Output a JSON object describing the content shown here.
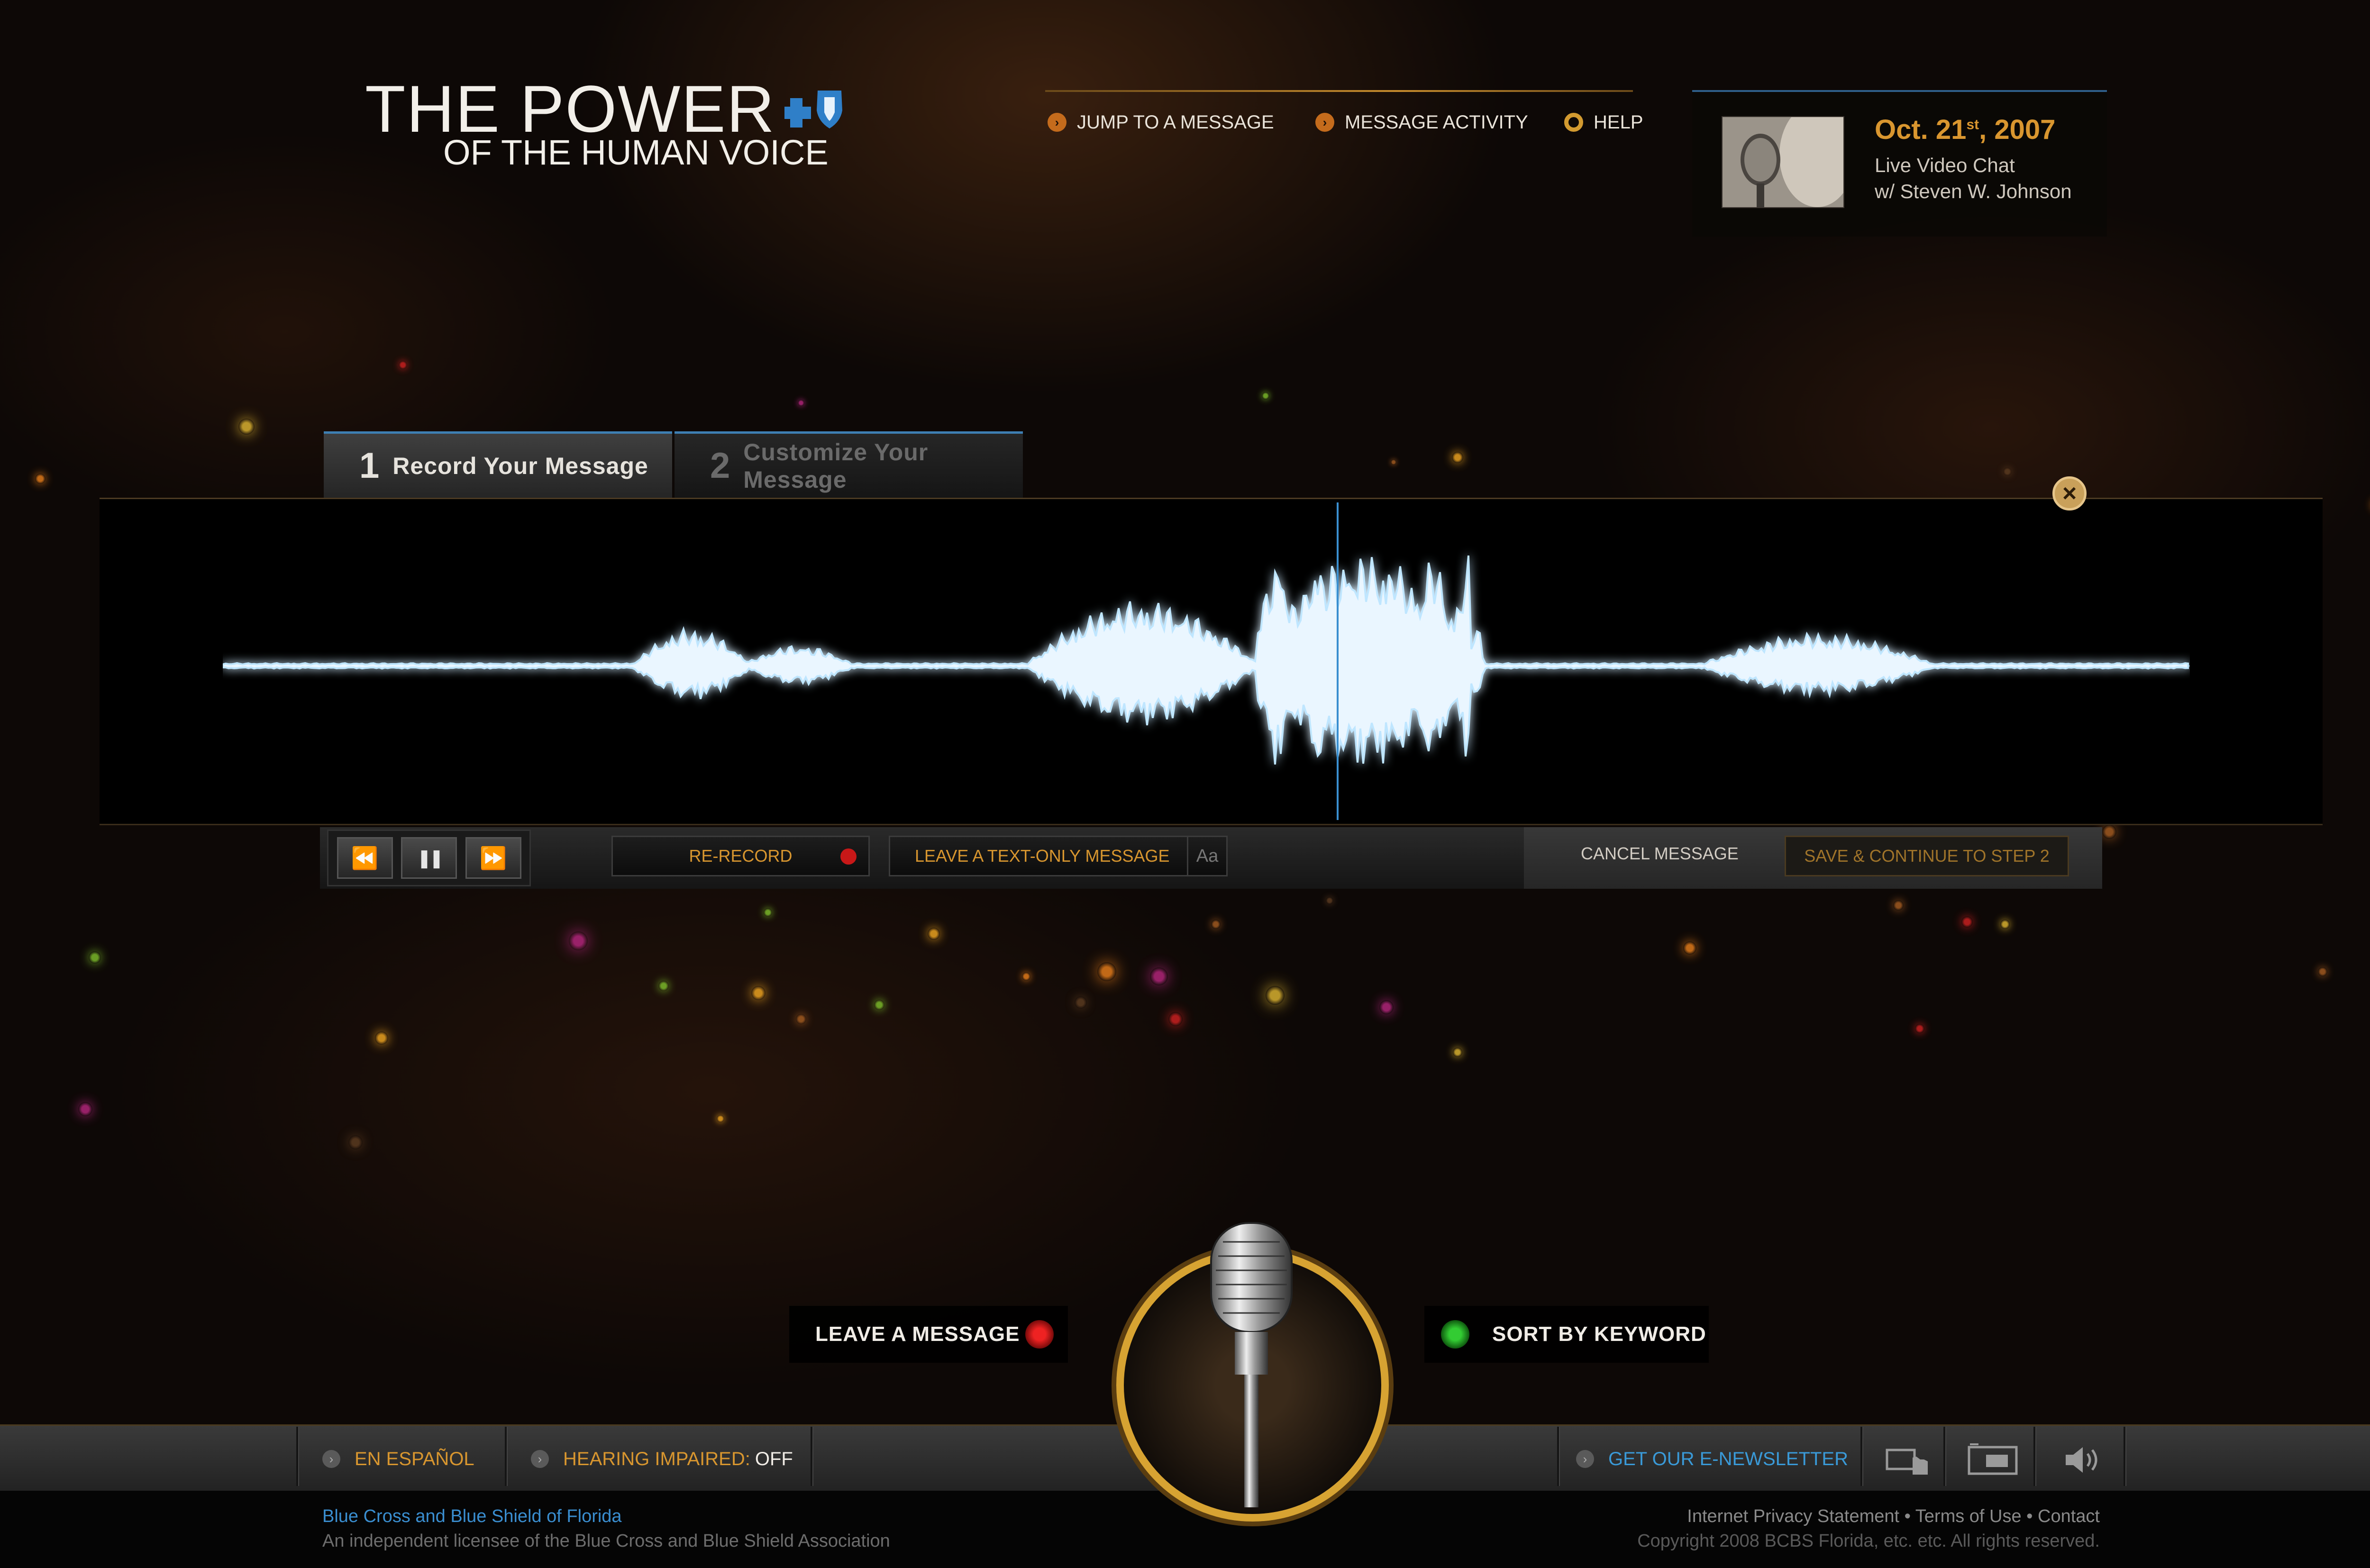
{
  "logo": {
    "title": "THE POWER",
    "subtitle": "OF THE HUMAN VOICE"
  },
  "nav": {
    "items": [
      {
        "label": "JUMP TO A MESSAGE",
        "icon": "chevron-right-icon"
      },
      {
        "label": "MESSAGE ACTIVITY",
        "icon": "chevron-right-icon"
      },
      {
        "label": "HELP",
        "icon": "ring-icon"
      }
    ]
  },
  "event": {
    "date_main": "Oct. 21",
    "date_suffix": "st",
    "date_year": ", 2007",
    "line1": "Live Video Chat",
    "line2": "w/ Steven W. Johnson"
  },
  "tabs": [
    {
      "number": "1",
      "label": "Record Your Message",
      "active": true
    },
    {
      "number": "2",
      "label": "Customize Your Message",
      "active": false
    }
  ],
  "controls": {
    "rewind_icon": "⏪",
    "pause_icon": "❚❚",
    "forward_icon": "⏩",
    "rerecord_label": "RE-RECORD",
    "textonly_label": "LEAVE A TEXT-ONLY MESSAGE",
    "textonly_aa": "Aa",
    "cancel_label": "CANCEL MESSAGE",
    "save_label": "SAVE & CONTINUE TO STEP 2",
    "close_glyph": "×"
  },
  "actions": {
    "leave_label": "LEAVE A MESSAGE",
    "sort_label": "SORT BY KEYWORD"
  },
  "footer": {
    "espanol": "EN ESPAÑOL",
    "hearing_label": "HEARING IMPAIRED:",
    "hearing_value": "OFF",
    "newsletter": "GET OUR E-NEWSLETTER",
    "org_name": "Blue Cross and Blue Shield of Florida",
    "org_desc": "An independent licensee of the Blue Cross and Blue Shield Association",
    "links": "Internet Privacy Statement • Terms of Use • Contact",
    "copyright": "Copyright 2008 BCBS Florida, etc. etc.  All rights reserved.",
    "icons": [
      "hand-cursor-icon",
      "screen-icon",
      "speaker-icon"
    ]
  },
  "colors": {
    "accent_orange": "#d8962f",
    "accent_blue": "#3a8ed0",
    "record_red": "#c81818",
    "sort_green": "#33cc33"
  }
}
